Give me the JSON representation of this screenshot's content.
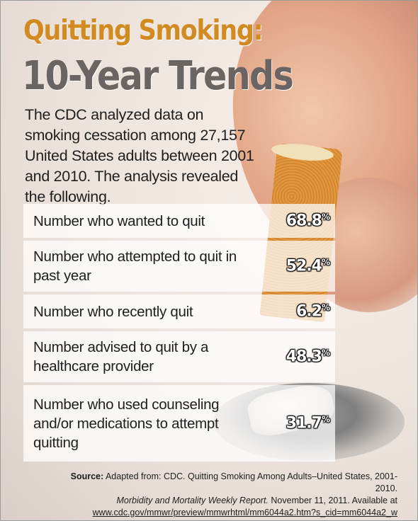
{
  "title_line1": "Quitting Smoking:",
  "title_line2": "10-Year Trends",
  "intro": "The CDC analyzed data on smoking cessation among 27,157 United States adults between 2001 and 2010. The analysis revealed the following.",
  "rows": [
    {
      "label": "Number who wanted to quit",
      "value": "68.8",
      "unit": "%"
    },
    {
      "label": "Number who attempted to quit in past year",
      "value": "52.4",
      "unit": "%"
    },
    {
      "label": "Number who recently quit",
      "value": "6.2",
      "unit": "%"
    },
    {
      "label": "Number advised to quit by a healthcare provider",
      "value": "48.3",
      "unit": "%"
    },
    {
      "label": "Number who used counseling and/or medications to attempt quitting",
      "value": "31.7",
      "unit": "%"
    }
  ],
  "source": {
    "label": "Source:",
    "text1": "Adapted from: CDC. Quitting Smoking Among Adults–United States, 2001-2010.",
    "journal": "Morbidity and Mortality Weekly Report.",
    "text2": "November 11, 2011. Available at",
    "url": "www.cdc.gov/mmwr/preview/mmwrhtml/mm6044a2.htm?s_cid=mm6044a2_w"
  },
  "colors": {
    "title_orange": "#d28a22",
    "title_gray": "#6a6463"
  },
  "icons": [
    "cigarette-photo",
    "hand-photo",
    "ash-photo"
  ]
}
